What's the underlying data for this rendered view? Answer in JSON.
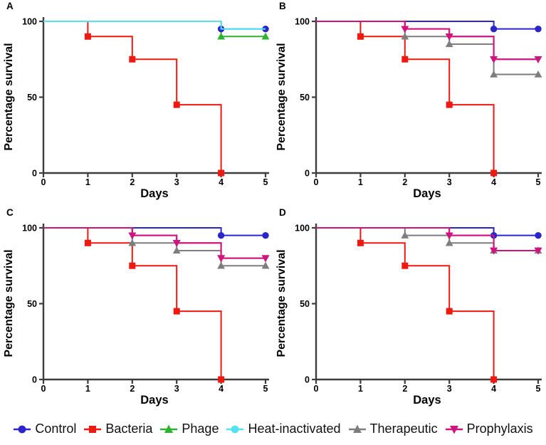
{
  "figure": {
    "background": "#ffffff",
    "axis_color": "#3d3d3d",
    "text_color": "#000000"
  },
  "legend": {
    "items": [
      {
        "label": "Control",
        "color": "#2a25cc",
        "marker": "circle"
      },
      {
        "label": "Bacteria",
        "color": "#f0180f",
        "marker": "square"
      },
      {
        "label": "Phage",
        "color": "#2cb32c",
        "marker": "triangle-up"
      },
      {
        "label": "Heat-inactivated",
        "color": "#52e2f4",
        "marker": "circle"
      },
      {
        "label": "Therapeutic",
        "color": "#7e7e7e",
        "marker": "triangle-up"
      },
      {
        "label": "Prophylaxis",
        "color": "#d0137e",
        "marker": "triangle-down"
      }
    ]
  },
  "chart_data": [
    {
      "panel": "A",
      "type": "line",
      "subtype": "kaplan-meier-step",
      "xlabel": "Days",
      "ylabel": "Percentage survival",
      "xlim": [
        0,
        5
      ],
      "ylim": [
        0,
        100
      ],
      "xticks": [
        0,
        1,
        2,
        3,
        4,
        5
      ],
      "yticks": [
        0,
        50,
        100
      ],
      "grid": false,
      "series": [
        {
          "name": "Control",
          "color": "#2a25cc",
          "marker": "circle",
          "days": [
            0,
            1,
            2,
            3,
            4,
            5
          ],
          "values": [
            100,
            100,
            100,
            100,
            95,
            95
          ],
          "marker_days": [
            4,
            5
          ]
        },
        {
          "name": "Bacteria",
          "color": "#f0180f",
          "marker": "square",
          "days": [
            0,
            1,
            2,
            3,
            4
          ],
          "values": [
            100,
            90,
            75,
            45,
            0
          ],
          "marker_days": [
            1,
            2,
            3,
            4
          ]
        },
        {
          "name": "Phage",
          "color": "#2cb32c",
          "marker": "triangle-up",
          "days": [
            0,
            1,
            2,
            3,
            4,
            5
          ],
          "values": [
            100,
            100,
            100,
            100,
            90,
            90
          ],
          "marker_days": [
            4,
            5
          ]
        },
        {
          "name": "Heat-inactivated",
          "color": "#52e2f4",
          "marker": "circle",
          "days": [
            0,
            1,
            2,
            3,
            4,
            5
          ],
          "values": [
            100,
            100,
            100,
            100,
            95,
            95
          ],
          "marker_days": []
        }
      ]
    },
    {
      "panel": "B",
      "type": "line",
      "subtype": "kaplan-meier-step",
      "xlabel": "Days",
      "ylabel": "Percentage survival",
      "xlim": [
        0,
        5
      ],
      "ylim": [
        0,
        100
      ],
      "xticks": [
        0,
        1,
        2,
        3,
        4,
        5
      ],
      "yticks": [
        0,
        50,
        100
      ],
      "grid": false,
      "series": [
        {
          "name": "Control",
          "color": "#2a25cc",
          "marker": "circle",
          "days": [
            0,
            1,
            2,
            3,
            4,
            5
          ],
          "values": [
            100,
            100,
            100,
            100,
            95,
            95
          ],
          "marker_days": [
            4,
            5
          ]
        },
        {
          "name": "Bacteria",
          "color": "#f0180f",
          "marker": "square",
          "days": [
            0,
            1,
            2,
            3,
            4
          ],
          "values": [
            100,
            90,
            75,
            45,
            0
          ],
          "marker_days": [
            1,
            2,
            3,
            4
          ]
        },
        {
          "name": "Therapeutic",
          "color": "#7e7e7e",
          "marker": "triangle-up",
          "days": [
            0,
            1,
            2,
            3,
            4,
            5
          ],
          "values": [
            100,
            100,
            90,
            85,
            65,
            65
          ],
          "marker_days": [
            2,
            3,
            4,
            5
          ]
        },
        {
          "name": "Prophylaxis",
          "color": "#d0137e",
          "marker": "triangle-down",
          "days": [
            0,
            1,
            2,
            3,
            4,
            5
          ],
          "values": [
            100,
            100,
            95,
            90,
            75,
            75
          ],
          "marker_days": [
            2,
            3,
            4,
            5
          ]
        }
      ]
    },
    {
      "panel": "C",
      "type": "line",
      "subtype": "kaplan-meier-step",
      "xlabel": "Days",
      "ylabel": "Percentage survival",
      "xlim": [
        0,
        5
      ],
      "ylim": [
        0,
        100
      ],
      "xticks": [
        0,
        1,
        2,
        3,
        4,
        5
      ],
      "yticks": [
        0,
        50,
        100
      ],
      "grid": false,
      "series": [
        {
          "name": "Control",
          "color": "#2a25cc",
          "marker": "circle",
          "days": [
            0,
            1,
            2,
            3,
            4,
            5
          ],
          "values": [
            100,
            100,
            100,
            100,
            95,
            95
          ],
          "marker_days": [
            4,
            5
          ]
        },
        {
          "name": "Bacteria",
          "color": "#f0180f",
          "marker": "square",
          "days": [
            0,
            1,
            2,
            3,
            4
          ],
          "values": [
            100,
            90,
            75,
            45,
            0
          ],
          "marker_days": [
            1,
            2,
            3,
            4
          ]
        },
        {
          "name": "Therapeutic",
          "color": "#7e7e7e",
          "marker": "triangle-up",
          "days": [
            0,
            1,
            2,
            3,
            4,
            5
          ],
          "values": [
            100,
            100,
            90,
            85,
            75,
            75
          ],
          "marker_days": [
            2,
            3,
            4,
            5
          ]
        },
        {
          "name": "Prophylaxis",
          "color": "#d0137e",
          "marker": "triangle-down",
          "days": [
            0,
            1,
            2,
            3,
            4,
            5
          ],
          "values": [
            100,
            100,
            95,
            90,
            80,
            80
          ],
          "marker_days": [
            2,
            3,
            4,
            5
          ]
        }
      ]
    },
    {
      "panel": "D",
      "type": "line",
      "subtype": "kaplan-meier-step",
      "xlabel": "Days",
      "ylabel": "Percentage survival",
      "xlim": [
        0,
        5
      ],
      "ylim": [
        0,
        100
      ],
      "xticks": [
        0,
        1,
        2,
        3,
        4,
        5
      ],
      "yticks": [
        0,
        50,
        100
      ],
      "grid": false,
      "series": [
        {
          "name": "Control",
          "color": "#2a25cc",
          "marker": "circle",
          "days": [
            0,
            1,
            2,
            3,
            4,
            5
          ],
          "values": [
            100,
            100,
            100,
            100,
            95,
            95
          ],
          "marker_days": [
            4,
            5
          ]
        },
        {
          "name": "Bacteria",
          "color": "#f0180f",
          "marker": "square",
          "days": [
            0,
            1,
            2,
            3,
            4
          ],
          "values": [
            100,
            90,
            75,
            45,
            0
          ],
          "marker_days": [
            1,
            2,
            3,
            4
          ]
        },
        {
          "name": "Therapeutic",
          "color": "#7e7e7e",
          "marker": "triangle-up",
          "days": [
            0,
            1,
            2,
            3,
            4,
            5
          ],
          "values": [
            100,
            100,
            95,
            90,
            85,
            85
          ],
          "marker_days": [
            2,
            3,
            4,
            5
          ]
        },
        {
          "name": "Prophylaxis",
          "color": "#d0137e",
          "marker": "triangle-down",
          "days": [
            0,
            1,
            2,
            3,
            4,
            5
          ],
          "values": [
            100,
            100,
            100,
            95,
            85,
            85
          ],
          "marker_days": [
            3,
            4,
            5
          ]
        }
      ]
    }
  ]
}
